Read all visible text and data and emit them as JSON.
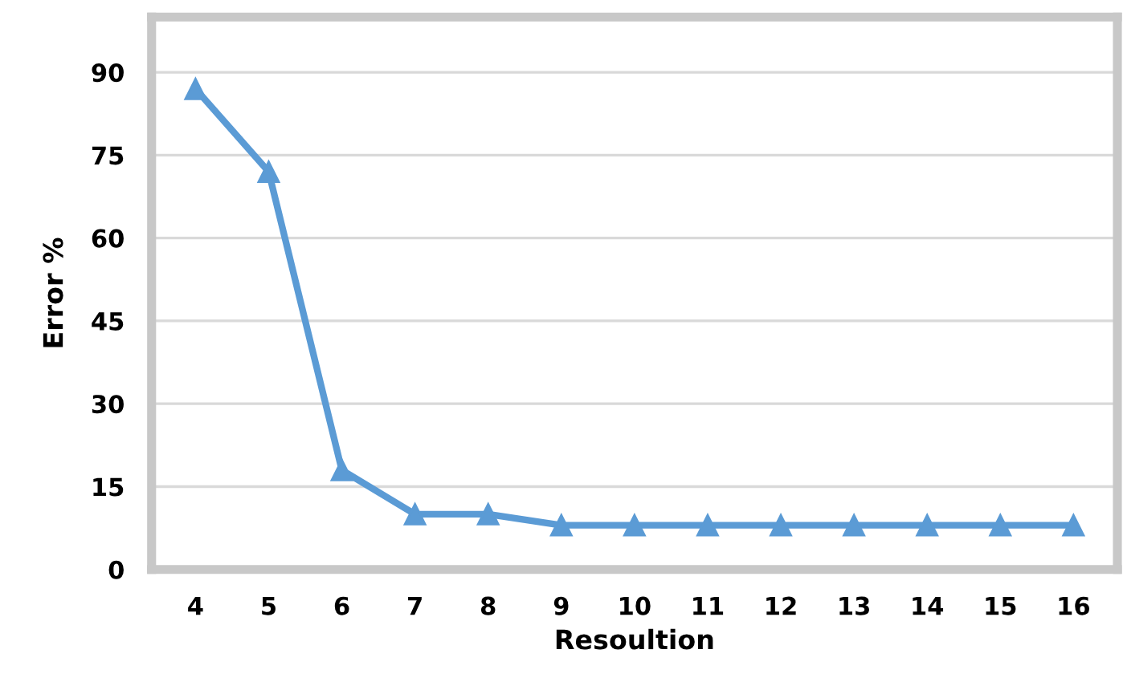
{
  "chart_data": {
    "type": "line",
    "xlabel": "Resoultion",
    "ylabel": "Error %",
    "categories": [
      "4",
      "5",
      "6",
      "7",
      "8",
      "9",
      "10",
      "11",
      "12",
      "13",
      "14",
      "15",
      "16"
    ],
    "series": [
      {
        "color": "#5b9bd5",
        "values": [
          87,
          72,
          18,
          10,
          10,
          8,
          8,
          8,
          8,
          8,
          8,
          8,
          8
        ]
      }
    ],
    "ylim": [
      0,
      100
    ],
    "yticks": [
      0,
      15,
      30,
      45,
      60,
      75,
      90
    ],
    "grid": "y",
    "marker": "triangle",
    "line_style": "solid"
  }
}
